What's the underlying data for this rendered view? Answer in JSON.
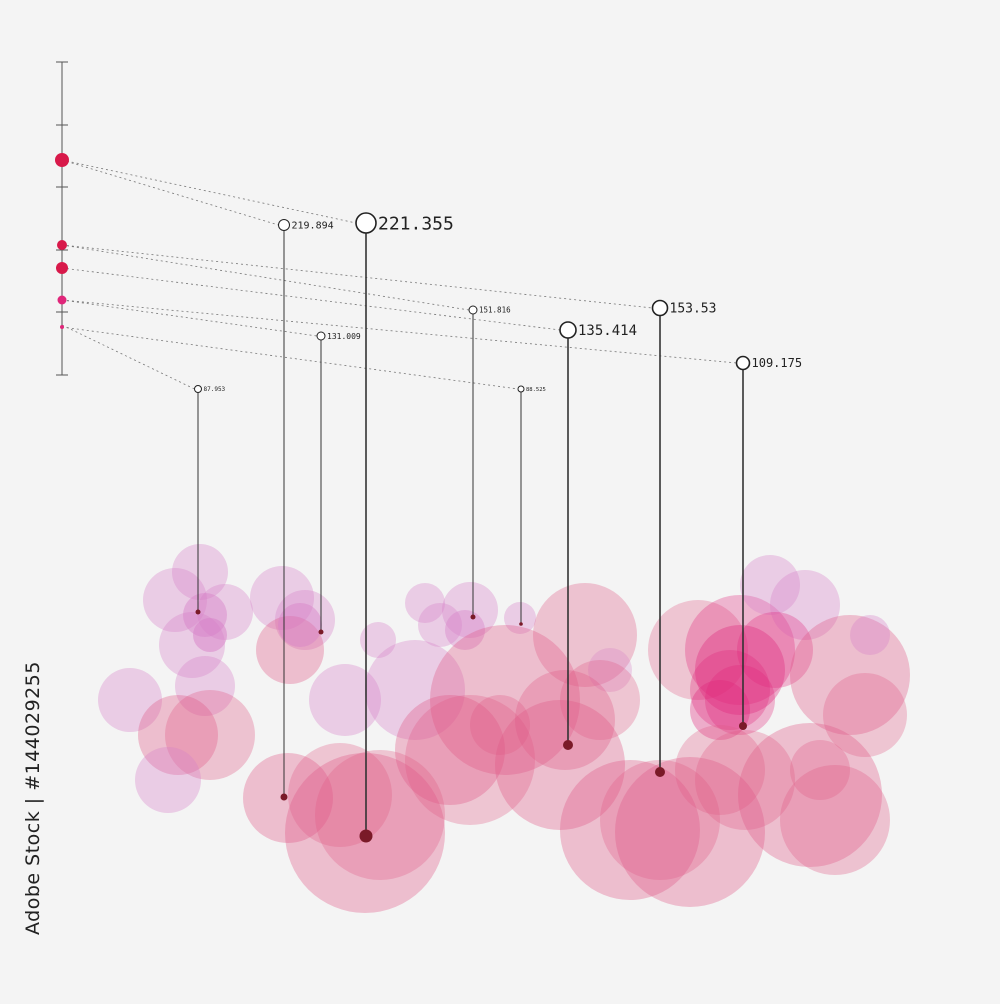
{
  "chart_data": {
    "type": "bubble-pins",
    "markers": [
      {
        "label": "87.953"
      },
      {
        "label": "219.894"
      },
      {
        "label": "131.009"
      },
      {
        "label": "221.355"
      },
      {
        "label": "151.816"
      },
      {
        "label": "88.525"
      },
      {
        "label": "135.414"
      },
      {
        "label": "153.53"
      },
      {
        "label": "109.175"
      }
    ],
    "values": [
      87.953,
      219.894,
      131.009,
      221.355,
      151.816,
      88.525,
      135.414,
      153.53,
      109.175
    ],
    "scale_levels": [
      221.355,
      153.53,
      135.414,
      109.175,
      88.525
    ],
    "colors": {
      "background": "#f4f4f4",
      "pink": "#d880c8",
      "rose": "#e05a86",
      "magenta": "#e0267a",
      "red": "#d8194a",
      "pin_dot": "#7a1a28",
      "axis": "#555555"
    }
  },
  "stock_id": "Adobe Stock | #144029255"
}
